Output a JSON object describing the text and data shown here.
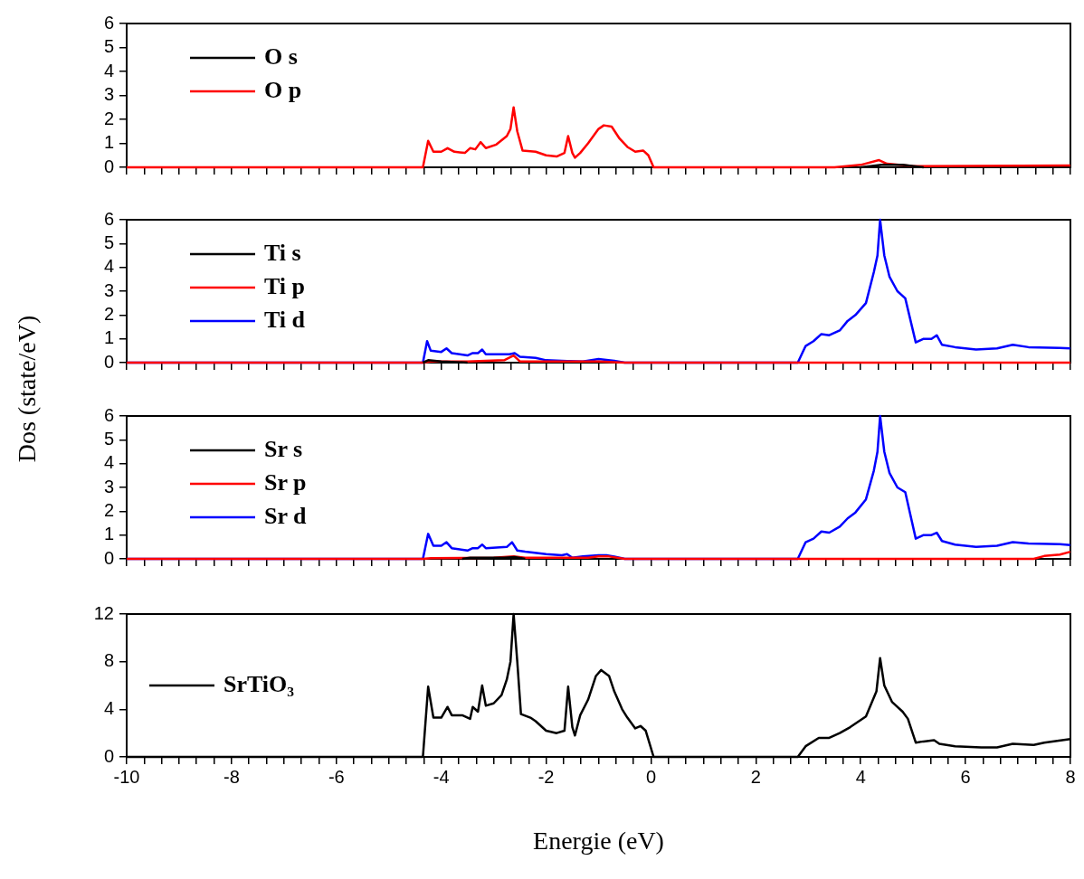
{
  "chart_data": [
    {
      "type": "line",
      "legend": "top left",
      "tick_labels": "y",
      "xlim": [
        -10,
        8
      ],
      "ylim": [
        0,
        6
      ],
      "yticks": [
        0,
        1,
        2,
        3,
        4,
        5,
        6
      ],
      "xticks": [
        -10,
        {
          "value": -9.667,
          "label": null
        },
        {
          "value": -9.333,
          "label": null
        },
        {
          "value": -9,
          "label": null
        },
        {
          "value": -8.667,
          "label": null
        },
        {
          "value": -8.333,
          "label": null
        },
        -8,
        {
          "value": -7.667,
          "label": null
        },
        {
          "value": -7.333,
          "label": null
        },
        {
          "value": -7,
          "label": null
        },
        {
          "value": -6.667,
          "label": null
        },
        {
          "value": -6.333,
          "label": null
        },
        -6,
        {
          "value": -5.667,
          "label": null
        },
        {
          "value": -5.333,
          "label": null
        },
        {
          "value": -5,
          "label": null
        },
        {
          "value": -4.667,
          "label": null
        },
        {
          "value": -4.333,
          "label": null
        },
        -4,
        {
          "value": -3.667,
          "label": null
        },
        {
          "value": -3.333,
          "label": null
        },
        {
          "value": -3,
          "label": null
        },
        {
          "value": -2.667,
          "label": null
        },
        {
          "value": -2.333,
          "label": null
        },
        -2,
        {
          "value": -1.667,
          "label": null
        },
        {
          "value": -1.333,
          "label": null
        },
        {
          "value": -1,
          "label": null
        },
        {
          "value": -0.667,
          "label": null
        },
        {
          "value": -0.333,
          "label": null
        },
        0,
        {
          "value": 0.333,
          "label": null
        },
        {
          "value": 0.667,
          "label": null
        },
        {
          "value": 1,
          "label": null
        },
        {
          "value": 1.333,
          "label": null
        },
        {
          "value": 1.667,
          "label": null
        },
        2,
        {
          "value": 2.333,
          "label": null
        },
        {
          "value": 2.667,
          "label": null
        },
        {
          "value": 3,
          "label": null
        },
        {
          "value": 3.333,
          "label": null
        },
        {
          "value": 3.667,
          "label": null
        },
        4,
        {
          "value": 4.333,
          "label": null
        },
        {
          "value": 4.667,
          "label": null
        },
        {
          "value": 5,
          "label": null
        },
        {
          "value": 5.333,
          "label": null
        },
        {
          "value": 5.667,
          "label": null
        },
        6,
        {
          "value": 6.333,
          "label": null
        },
        {
          "value": 6.667,
          "label": null
        },
        {
          "value": 7,
          "label": null
        },
        {
          "value": 7.333,
          "label": null
        },
        {
          "value": 7.667,
          "label": null
        },
        8
      ],
      "series": [
        {
          "name": "O s",
          "color": "#000000",
          "x": [
            4.0,
            4.4,
            4.8,
            5.2
          ],
          "values": [
            0,
            0.1,
            0.1,
            0
          ]
        },
        {
          "name": "O p",
          "color": "#ff0000",
          "x": [
            -10,
            -4.35,
            -4.25,
            -4.15,
            -4.0,
            -3.88,
            -3.75,
            -3.55,
            -3.45,
            -3.35,
            -3.25,
            -3.15,
            -2.95,
            -2.75,
            -2.68,
            -2.62,
            -2.55,
            -2.45,
            -2.2,
            -2.0,
            -1.8,
            -1.65,
            -1.58,
            -1.5,
            -1.45,
            -1.35,
            -1.2,
            -1.0,
            -0.9,
            -0.75,
            -0.6,
            -0.45,
            -0.3,
            -0.15,
            -0.05,
            0.05,
            3.5,
            4.0,
            4.35,
            4.5,
            5.0,
            8
          ],
          "values": [
            0,
            0,
            1.1,
            0.65,
            0.65,
            0.8,
            0.65,
            0.6,
            0.8,
            0.75,
            1.05,
            0.8,
            0.95,
            1.3,
            1.6,
            2.5,
            1.5,
            0.7,
            0.65,
            0.5,
            0.45,
            0.6,
            1.3,
            0.6,
            0.4,
            0.6,
            1.0,
            1.6,
            1.75,
            1.7,
            1.2,
            0.85,
            0.65,
            0.7,
            0.5,
            0,
            0,
            0.1,
            0.3,
            0.15,
            0.05,
            0.08
          ]
        }
      ]
    },
    {
      "type": "line",
      "legend": "top left",
      "tick_labels": "y",
      "ylabel": "Dos (state/eV)",
      "xlim": [
        -10,
        8
      ],
      "ylim": [
        0,
        6
      ],
      "yticks": [
        0,
        1,
        2,
        3,
        4,
        5,
        6
      ],
      "xticks": [
        -10,
        {
          "value": -9.667,
          "label": null
        },
        {
          "value": -9.333,
          "label": null
        },
        {
          "value": -9,
          "label": null
        },
        {
          "value": -8.667,
          "label": null
        },
        {
          "value": -8.333,
          "label": null
        },
        -8,
        {
          "value": -7.667,
          "label": null
        },
        {
          "value": -7.333,
          "label": null
        },
        {
          "value": -7,
          "label": null
        },
        {
          "value": -6.667,
          "label": null
        },
        {
          "value": -6.333,
          "label": null
        },
        -6,
        {
          "value": -5.667,
          "label": null
        },
        {
          "value": -5.333,
          "label": null
        },
        {
          "value": -5,
          "label": null
        },
        {
          "value": -4.667,
          "label": null
        },
        {
          "value": -4.333,
          "label": null
        },
        -4,
        {
          "value": -3.667,
          "label": null
        },
        {
          "value": -3.333,
          "label": null
        },
        {
          "value": -3,
          "label": null
        },
        {
          "value": -2.667,
          "label": null
        },
        {
          "value": -2.333,
          "label": null
        },
        -2,
        {
          "value": -1.667,
          "label": null
        },
        {
          "value": -1.333,
          "label": null
        },
        {
          "value": -1,
          "label": null
        },
        {
          "value": -0.667,
          "label": null
        },
        {
          "value": -0.333,
          "label": null
        },
        0,
        {
          "value": 0.333,
          "label": null
        },
        {
          "value": 0.667,
          "label": null
        },
        {
          "value": 1,
          "label": null
        },
        {
          "value": 1.333,
          "label": null
        },
        {
          "value": 1.667,
          "label": null
        },
        2,
        {
          "value": 2.333,
          "label": null
        },
        {
          "value": 2.667,
          "label": null
        },
        {
          "value": 3,
          "label": null
        },
        {
          "value": 3.333,
          "label": null
        },
        {
          "value": 3.667,
          "label": null
        },
        4,
        {
          "value": 4.333,
          "label": null
        },
        {
          "value": 4.667,
          "label": null
        },
        {
          "value": 5,
          "label": null
        },
        {
          "value": 5.333,
          "label": null
        },
        {
          "value": 5.667,
          "label": null
        },
        6,
        {
          "value": 6.333,
          "label": null
        },
        {
          "value": 6.667,
          "label": null
        },
        {
          "value": 7,
          "label": null
        },
        {
          "value": 7.333,
          "label": null
        },
        {
          "value": 7.667,
          "label": null
        },
        8
      ],
      "series": [
        {
          "name": "Ti s",
          "color": "#000000",
          "x": [
            -4.35,
            -4.25,
            -4.0,
            -3.5
          ],
          "values": [
            0,
            0.1,
            0.05,
            0
          ]
        },
        {
          "name": "Ti p",
          "color": "#ff0000",
          "x": [
            -10,
            -4.35,
            -4.2,
            -3.5,
            -2.8,
            -2.62,
            -2.5,
            -2.0,
            -1.0,
            -0.5,
            8
          ],
          "values": [
            0,
            0,
            0.05,
            0.05,
            0.1,
            0.3,
            0.05,
            0.05,
            0.05,
            0,
            0
          ]
        },
        {
          "name": "Ti d",
          "color": "#0000ff",
          "x": [
            -10,
            -4.35,
            -4.27,
            -4.2,
            -4.0,
            -3.9,
            -3.8,
            -3.5,
            -3.4,
            -3.3,
            -3.22,
            -3.15,
            -2.7,
            -2.6,
            -2.5,
            -2.2,
            -2.0,
            -1.6,
            -1.3,
            -1.0,
            -0.7,
            -0.5,
            2.8,
            2.95,
            3.1,
            3.25,
            3.4,
            3.6,
            3.75,
            3.9,
            4.1,
            4.25,
            4.32,
            4.37,
            4.45,
            4.55,
            4.7,
            4.85,
            5.05,
            5.2,
            5.35,
            5.45,
            5.55,
            5.8,
            6.2,
            6.6,
            6.9,
            7.2,
            7.8,
            8
          ],
          "values": [
            0,
            0,
            0.9,
            0.5,
            0.45,
            0.6,
            0.4,
            0.3,
            0.4,
            0.4,
            0.55,
            0.35,
            0.35,
            0.4,
            0.25,
            0.2,
            0.1,
            0.07,
            0.05,
            0.15,
            0.08,
            0,
            0,
            0.7,
            0.9,
            1.2,
            1.15,
            1.35,
            1.75,
            2.0,
            2.5,
            3.8,
            4.5,
            6.0,
            4.5,
            3.6,
            3.0,
            2.7,
            0.85,
            1.0,
            1.0,
            1.15,
            0.75,
            0.65,
            0.55,
            0.6,
            0.75,
            0.65,
            0.62,
            0.6
          ]
        }
      ]
    },
    {
      "type": "line",
      "legend": "top left",
      "tick_labels": "y",
      "xlim": [
        -10,
        8
      ],
      "ylim": [
        0,
        6
      ],
      "yticks": [
        0,
        1,
        2,
        3,
        4,
        5,
        6
      ],
      "xticks": [
        -10,
        {
          "value": -9.667,
          "label": null
        },
        {
          "value": -9.333,
          "label": null
        },
        {
          "value": -9,
          "label": null
        },
        {
          "value": -8.667,
          "label": null
        },
        {
          "value": -8.333,
          "label": null
        },
        -8,
        {
          "value": -7.667,
          "label": null
        },
        {
          "value": -7.333,
          "label": null
        },
        {
          "value": -7,
          "label": null
        },
        {
          "value": -6.667,
          "label": null
        },
        {
          "value": -6.333,
          "label": null
        },
        -6,
        {
          "value": -5.667,
          "label": null
        },
        {
          "value": -5.333,
          "label": null
        },
        {
          "value": -5,
          "label": null
        },
        {
          "value": -4.667,
          "label": null
        },
        {
          "value": -4.333,
          "label": null
        },
        -4,
        {
          "value": -3.667,
          "label": null
        },
        {
          "value": -3.333,
          "label": null
        },
        {
          "value": -3,
          "label": null
        },
        {
          "value": -2.667,
          "label": null
        },
        {
          "value": -2.333,
          "label": null
        },
        -2,
        {
          "value": -1.667,
          "label": null
        },
        {
          "value": -1.333,
          "label": null
        },
        {
          "value": -1,
          "label": null
        },
        {
          "value": -0.667,
          "label": null
        },
        {
          "value": -0.333,
          "label": null
        },
        0,
        {
          "value": 0.333,
          "label": null
        },
        {
          "value": 0.667,
          "label": null
        },
        {
          "value": 1,
          "label": null
        },
        {
          "value": 1.333,
          "label": null
        },
        {
          "value": 1.667,
          "label": null
        },
        2,
        {
          "value": 2.333,
          "label": null
        },
        {
          "value": 2.667,
          "label": null
        },
        {
          "value": 3,
          "label": null
        },
        {
          "value": 3.333,
          "label": null
        },
        {
          "value": 3.667,
          "label": null
        },
        4,
        {
          "value": 4.333,
          "label": null
        },
        {
          "value": 4.667,
          "label": null
        },
        {
          "value": 5,
          "label": null
        },
        {
          "value": 5.333,
          "label": null
        },
        {
          "value": 5.667,
          "label": null
        },
        6,
        {
          "value": 6.333,
          "label": null
        },
        {
          "value": 6.667,
          "label": null
        },
        {
          "value": 7,
          "label": null
        },
        {
          "value": 7.333,
          "label": null
        },
        {
          "value": 7.667,
          "label": null
        },
        8
      ],
      "series": [
        {
          "name": "Sr s",
          "color": "#000000",
          "x": [
            -3.6,
            -3.45,
            -3.2,
            -2.8,
            -2.6,
            -2.4
          ],
          "values": [
            0,
            0.05,
            0.05,
            0.05,
            0.08,
            0
          ]
        },
        {
          "name": "Sr p",
          "color": "#ff0000",
          "x": [
            -10,
            -4.35,
            -4.2,
            -3.0,
            -2.62,
            -2.4,
            -1.2,
            -1.0,
            -0.8,
            -0.5,
            7.3,
            7.5,
            7.8,
            8
          ],
          "values": [
            0,
            0,
            0.03,
            0.05,
            0.1,
            0.05,
            0.05,
            0.1,
            0.1,
            0,
            0,
            0.12,
            0.18,
            0.3
          ]
        },
        {
          "name": "Sr d",
          "color": "#0000ff",
          "x": [
            -10,
            -4.35,
            -4.25,
            -4.15,
            -4.0,
            -3.9,
            -3.8,
            -3.5,
            -3.4,
            -3.3,
            -3.22,
            -3.15,
            -2.75,
            -2.65,
            -2.55,
            -2.4,
            -2.0,
            -1.7,
            -1.6,
            -1.5,
            -1.3,
            -1.0,
            -0.85,
            -0.7,
            -0.5,
            2.8,
            2.95,
            3.1,
            3.25,
            3.4,
            3.6,
            3.75,
            3.9,
            4.1,
            4.25,
            4.32,
            4.37,
            4.45,
            4.55,
            4.7,
            4.85,
            5.05,
            5.2,
            5.35,
            5.45,
            5.55,
            5.8,
            6.2,
            6.6,
            6.9,
            7.2,
            7.8,
            8
          ],
          "values": [
            0,
            0,
            1.05,
            0.55,
            0.55,
            0.7,
            0.45,
            0.35,
            0.45,
            0.45,
            0.6,
            0.45,
            0.5,
            0.7,
            0.35,
            0.3,
            0.2,
            0.15,
            0.2,
            0.05,
            0.1,
            0.15,
            0.15,
            0.1,
            0,
            0,
            0.7,
            0.85,
            1.15,
            1.1,
            1.35,
            1.7,
            1.95,
            2.5,
            3.7,
            4.5,
            6.0,
            4.5,
            3.6,
            3.0,
            2.8,
            0.85,
            1.0,
            1.0,
            1.1,
            0.75,
            0.6,
            0.5,
            0.55,
            0.7,
            0.65,
            0.62,
            0.58
          ]
        }
      ]
    },
    {
      "type": "line",
      "legend": "left",
      "xlabel": "Energie (eV)",
      "xlim": [
        -10,
        8
      ],
      "ylim": [
        0,
        12
      ],
      "yticks": [
        0,
        4,
        8,
        12
      ],
      "xticks": [
        -10,
        {
          "value": -9.667,
          "label": null
        },
        {
          "value": -9.333,
          "label": null
        },
        {
          "value": -9,
          "label": null
        },
        {
          "value": -8.667,
          "label": null
        },
        {
          "value": -8.333,
          "label": null
        },
        -8,
        {
          "value": -7.667,
          "label": null
        },
        {
          "value": -7.333,
          "label": null
        },
        {
          "value": -7,
          "label": null
        },
        {
          "value": -6.667,
          "label": null
        },
        {
          "value": -6.333,
          "label": null
        },
        -6,
        {
          "value": -5.667,
          "label": null
        },
        {
          "value": -5.333,
          "label": null
        },
        {
          "value": -5,
          "label": null
        },
        {
          "value": -4.667,
          "label": null
        },
        {
          "value": -4.333,
          "label": null
        },
        -4,
        {
          "value": -3.667,
          "label": null
        },
        {
          "value": -3.333,
          "label": null
        },
        {
          "value": -3,
          "label": null
        },
        {
          "value": -2.667,
          "label": null
        },
        {
          "value": -2.333,
          "label": null
        },
        -2,
        {
          "value": -1.667,
          "label": null
        },
        {
          "value": -1.333,
          "label": null
        },
        {
          "value": -1,
          "label": null
        },
        {
          "value": -0.667,
          "label": null
        },
        {
          "value": -0.333,
          "label": null
        },
        0,
        {
          "value": 0.333,
          "label": null
        },
        {
          "value": 0.667,
          "label": null
        },
        {
          "value": 1,
          "label": null
        },
        {
          "value": 1.333,
          "label": null
        },
        {
          "value": 1.667,
          "label": null
        },
        2,
        {
          "value": 2.333,
          "label": null
        },
        {
          "value": 2.667,
          "label": null
        },
        {
          "value": 3,
          "label": null
        },
        {
          "value": 3.333,
          "label": null
        },
        {
          "value": 3.667,
          "label": null
        },
        4,
        {
          "value": 4.333,
          "label": null
        },
        {
          "value": 4.667,
          "label": null
        },
        {
          "value": 5,
          "label": null
        },
        {
          "value": 5.333,
          "label": null
        },
        {
          "value": 5.667,
          "label": null
        },
        6,
        {
          "value": 6.333,
          "label": null
        },
        {
          "value": 6.667,
          "label": null
        },
        {
          "value": 7,
          "label": null
        },
        {
          "value": 7.333,
          "label": null
        },
        {
          "value": 7.667,
          "label": null
        },
        8
      ],
      "series": [
        {
          "name": "SrTiO₃",
          "color": "#000000",
          "x": [
            -10,
            -4.35,
            -4.25,
            -4.15,
            -4.0,
            -3.88,
            -3.8,
            -3.6,
            -3.45,
            -3.4,
            -3.3,
            -3.22,
            -3.15,
            -3.0,
            -2.85,
            -2.75,
            -2.68,
            -2.62,
            -2.55,
            -2.48,
            -2.3,
            -2.2,
            -2.0,
            -1.8,
            -1.65,
            -1.58,
            -1.5,
            -1.45,
            -1.35,
            -1.2,
            -1.05,
            -0.95,
            -0.8,
            -0.7,
            -0.55,
            -0.45,
            -0.3,
            -0.2,
            -0.1,
            0.05,
            2.8,
            2.95,
            3.2,
            3.4,
            3.6,
            3.8,
            4.1,
            4.3,
            4.37,
            4.45,
            4.6,
            4.8,
            4.9,
            5.05,
            5.2,
            5.4,
            5.5,
            5.8,
            6.3,
            6.6,
            6.9,
            7.3,
            7.5,
            8
          ],
          "values": [
            0,
            0,
            5.9,
            3.3,
            3.3,
            4.2,
            3.5,
            3.5,
            3.2,
            4.2,
            3.8,
            6.0,
            4.3,
            4.5,
            5.2,
            6.5,
            8,
            12,
            8,
            3.6,
            3.3,
            3.0,
            2.2,
            2.0,
            2.2,
            5.9,
            2.5,
            1.8,
            3.5,
            4.8,
            6.8,
            7.3,
            6.8,
            5.5,
            4.0,
            3.3,
            2.4,
            2.6,
            2.2,
            0,
            0,
            0.9,
            1.6,
            1.6,
            2.0,
            2.5,
            3.4,
            5.5,
            8.3,
            6.0,
            4.6,
            3.8,
            3.2,
            1.2,
            1.3,
            1.4,
            1.1,
            0.9,
            0.8,
            0.8,
            1.1,
            1.0,
            1.2,
            1.5
          ]
        }
      ]
    }
  ]
}
